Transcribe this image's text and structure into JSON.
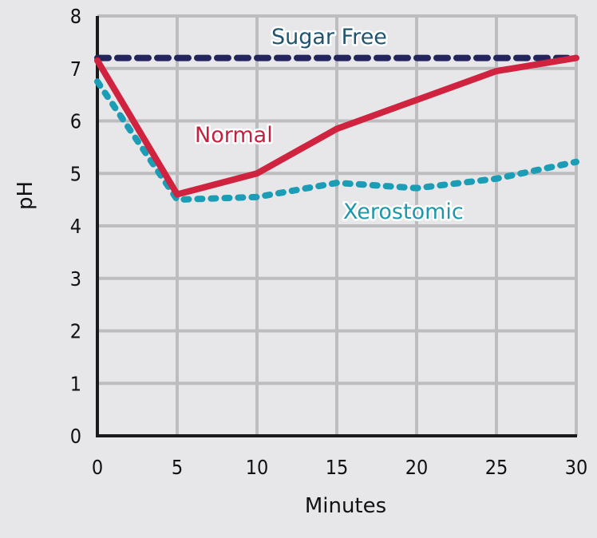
{
  "chart_data": {
    "type": "line",
    "title": "",
    "xlabel": "Minutes",
    "ylabel": "pH",
    "xlim": [
      0,
      30
    ],
    "ylim": [
      0,
      8
    ],
    "grid": true,
    "x_ticks": [
      "0",
      "5",
      "10",
      "15",
      "20",
      "25",
      "30"
    ],
    "y_ticks": [
      "0",
      "1",
      "2",
      "3",
      "4",
      "5",
      "6",
      "7",
      "8"
    ],
    "x": [
      0,
      5,
      10,
      15,
      20,
      25,
      30
    ],
    "series": [
      {
        "name": "Sugar Free",
        "style": "dashed",
        "color": "#24245e",
        "label_color": "#1f5570",
        "values": [
          7.2,
          7.2,
          7.2,
          7.2,
          7.2,
          7.2,
          7.2
        ]
      },
      {
        "name": "Normal",
        "style": "solid",
        "color": "#d0233f",
        "label_color": "#c42140",
        "values": [
          7.15,
          4.6,
          5.0,
          5.85,
          6.4,
          6.95,
          7.2
        ]
      },
      {
        "name": "Xerostomic",
        "style": "dotted",
        "color": "#1b9db5",
        "label_color": "#1e97a8",
        "values": [
          6.75,
          4.5,
          4.55,
          4.82,
          4.72,
          4.9,
          5.22
        ]
      }
    ]
  }
}
